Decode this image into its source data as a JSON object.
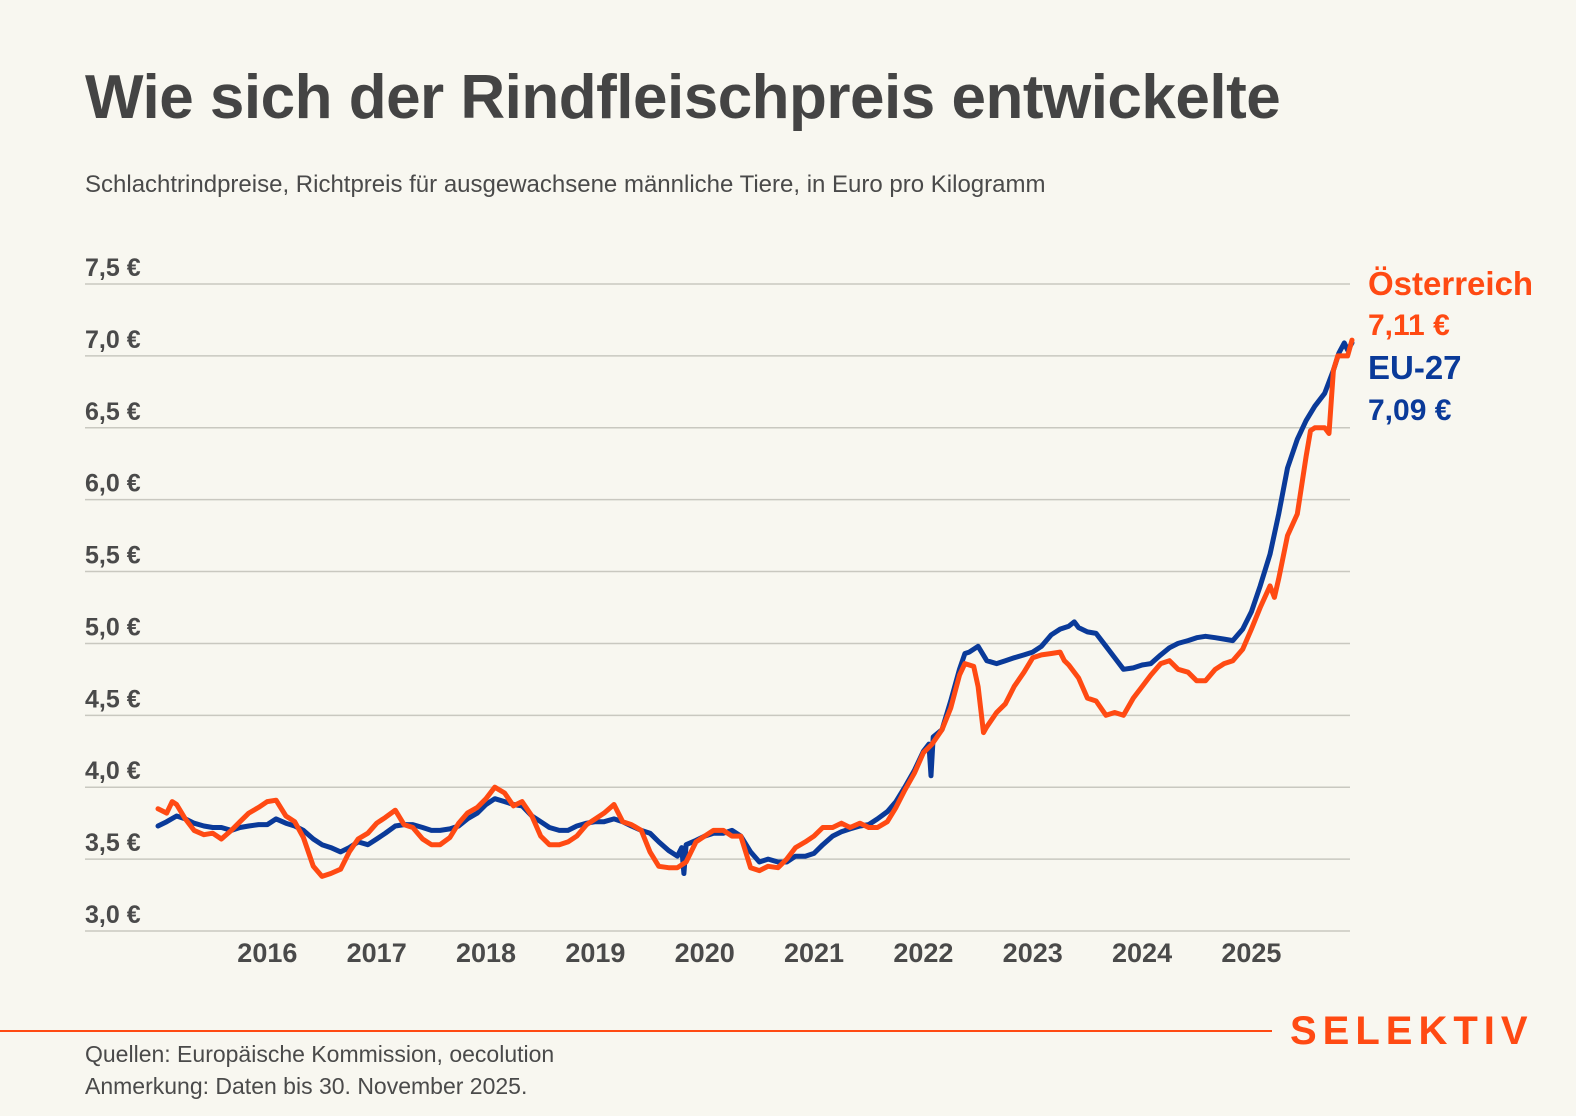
{
  "title": "Wie sich der Rindfleischpreis entwickelte",
  "subtitle": "Schlachtrindpreise, Richtpreis für ausgewachsene männliche Tiere, in Euro pro Kilogramm",
  "legend": {
    "austria": {
      "name": "Österreich",
      "value": "7,11 €"
    },
    "eu": {
      "name": "EU-27",
      "value": "7,09 €"
    }
  },
  "colors": {
    "austria": "#ff4a13",
    "eu": "#0a3a99",
    "grid": "#c9c8c0",
    "text": "#444444",
    "background": "#f8f7f0",
    "brand": "#ff4a13"
  },
  "footer": {
    "brand": "SELEKTIV",
    "sources": "Quellen: Europäische Kommission, oecolution",
    "note": "Anmerkung: Daten bis 30. November 2025."
  },
  "chart_data": {
    "type": "line",
    "title": "Wie sich der Rindfleischpreis entwickelte",
    "subtitle": "Schlachtrindpreise, Richtpreis für ausgewachsene männliche Tiere, in Euro pro Kilogramm",
    "xlabel": "",
    "ylabel": "Euro pro Kilogramm",
    "ylim": [
      3.0,
      7.5
    ],
    "xlim": [
      2015.0,
      2025.92
    ],
    "grid": true,
    "legend_position": "right",
    "yticks": [
      3.0,
      3.5,
      4.0,
      4.5,
      5.0,
      5.5,
      6.0,
      6.5,
      7.0,
      7.5
    ],
    "ytick_labels": [
      "3,0 €",
      "3,5 €",
      "4,0 €",
      "4,5 €",
      "5,0 €",
      "5,5 €",
      "6,0 €",
      "6,5 €",
      "7,0 €",
      "7,5 €"
    ],
    "xticks": [
      2016,
      2017,
      2018,
      2019,
      2020,
      2021,
      2022,
      2023,
      2024,
      2025
    ],
    "xtick_labels": [
      "2016",
      "2017",
      "2018",
      "2019",
      "2020",
      "2021",
      "2022",
      "2023",
      "2024",
      "2025"
    ],
    "series": [
      {
        "name": "EU-27",
        "color": "#0a3a99",
        "last_value": 7.09,
        "points": [
          [
            2015.0,
            3.73
          ],
          [
            2015.08,
            3.76
          ],
          [
            2015.17,
            3.8
          ],
          [
            2015.25,
            3.78
          ],
          [
            2015.33,
            3.75
          ],
          [
            2015.42,
            3.73
          ],
          [
            2015.5,
            3.72
          ],
          [
            2015.58,
            3.72
          ],
          [
            2015.67,
            3.7
          ],
          [
            2015.75,
            3.72
          ],
          [
            2015.83,
            3.73
          ],
          [
            2015.92,
            3.74
          ],
          [
            2016.0,
            3.74
          ],
          [
            2016.08,
            3.78
          ],
          [
            2016.17,
            3.75
          ],
          [
            2016.25,
            3.73
          ],
          [
            2016.33,
            3.7
          ],
          [
            2016.42,
            3.64
          ],
          [
            2016.5,
            3.6
          ],
          [
            2016.58,
            3.58
          ],
          [
            2016.67,
            3.55
          ],
          [
            2016.75,
            3.58
          ],
          [
            2016.83,
            3.62
          ],
          [
            2016.92,
            3.6
          ],
          [
            2017.0,
            3.64
          ],
          [
            2017.08,
            3.68
          ],
          [
            2017.17,
            3.73
          ],
          [
            2017.25,
            3.74
          ],
          [
            2017.33,
            3.74
          ],
          [
            2017.42,
            3.72
          ],
          [
            2017.5,
            3.7
          ],
          [
            2017.58,
            3.7
          ],
          [
            2017.67,
            3.71
          ],
          [
            2017.75,
            3.73
          ],
          [
            2017.83,
            3.78
          ],
          [
            2017.92,
            3.82
          ],
          [
            2018.0,
            3.88
          ],
          [
            2018.08,
            3.92
          ],
          [
            2018.17,
            3.9
          ],
          [
            2018.25,
            3.88
          ],
          [
            2018.33,
            3.87
          ],
          [
            2018.42,
            3.8
          ],
          [
            2018.5,
            3.76
          ],
          [
            2018.58,
            3.72
          ],
          [
            2018.67,
            3.7
          ],
          [
            2018.75,
            3.7
          ],
          [
            2018.83,
            3.73
          ],
          [
            2018.92,
            3.75
          ],
          [
            2019.0,
            3.76
          ],
          [
            2019.08,
            3.76
          ],
          [
            2019.17,
            3.78
          ],
          [
            2019.25,
            3.76
          ],
          [
            2019.33,
            3.73
          ],
          [
            2019.42,
            3.7
          ],
          [
            2019.5,
            3.68
          ],
          [
            2019.58,
            3.62
          ],
          [
            2019.67,
            3.56
          ],
          [
            2019.75,
            3.52
          ],
          [
            2019.79,
            3.58
          ],
          [
            2019.81,
            3.4
          ],
          [
            2019.83,
            3.6
          ],
          [
            2019.92,
            3.63
          ],
          [
            2020.0,
            3.66
          ],
          [
            2020.08,
            3.68
          ],
          [
            2020.17,
            3.68
          ],
          [
            2020.25,
            3.7
          ],
          [
            2020.33,
            3.66
          ],
          [
            2020.42,
            3.55
          ],
          [
            2020.5,
            3.48
          ],
          [
            2020.58,
            3.5
          ],
          [
            2020.67,
            3.48
          ],
          [
            2020.75,
            3.48
          ],
          [
            2020.83,
            3.52
          ],
          [
            2020.92,
            3.52
          ],
          [
            2021.0,
            3.54
          ],
          [
            2021.08,
            3.6
          ],
          [
            2021.17,
            3.66
          ],
          [
            2021.25,
            3.69
          ],
          [
            2021.33,
            3.71
          ],
          [
            2021.42,
            3.73
          ],
          [
            2021.5,
            3.74
          ],
          [
            2021.58,
            3.78
          ],
          [
            2021.67,
            3.83
          ],
          [
            2021.75,
            3.9
          ],
          [
            2021.83,
            4.0
          ],
          [
            2021.92,
            4.12
          ],
          [
            2022.0,
            4.25
          ],
          [
            2022.05,
            4.3
          ],
          [
            2022.07,
            4.08
          ],
          [
            2022.09,
            4.35
          ],
          [
            2022.17,
            4.4
          ],
          [
            2022.25,
            4.6
          ],
          [
            2022.33,
            4.82
          ],
          [
            2022.38,
            4.93
          ],
          [
            2022.42,
            4.94
          ],
          [
            2022.5,
            4.98
          ],
          [
            2022.58,
            4.88
          ],
          [
            2022.67,
            4.86
          ],
          [
            2022.75,
            4.88
          ],
          [
            2022.83,
            4.9
          ],
          [
            2022.92,
            4.92
          ],
          [
            2023.0,
            4.94
          ],
          [
            2023.08,
            4.98
          ],
          [
            2023.17,
            5.06
          ],
          [
            2023.25,
            5.1
          ],
          [
            2023.33,
            5.12
          ],
          [
            2023.38,
            5.15
          ],
          [
            2023.42,
            5.11
          ],
          [
            2023.5,
            5.08
          ],
          [
            2023.58,
            5.07
          ],
          [
            2023.67,
            4.98
          ],
          [
            2023.75,
            4.9
          ],
          [
            2023.83,
            4.82
          ],
          [
            2023.92,
            4.83
          ],
          [
            2024.0,
            4.85
          ],
          [
            2024.08,
            4.86
          ],
          [
            2024.17,
            4.92
          ],
          [
            2024.25,
            4.97
          ],
          [
            2024.33,
            5.0
          ],
          [
            2024.42,
            5.02
          ],
          [
            2024.5,
            5.04
          ],
          [
            2024.58,
            5.05
          ],
          [
            2024.67,
            5.04
          ],
          [
            2024.75,
            5.03
          ],
          [
            2024.83,
            5.02
          ],
          [
            2024.92,
            5.1
          ],
          [
            2025.0,
            5.22
          ],
          [
            2025.08,
            5.4
          ],
          [
            2025.17,
            5.62
          ],
          [
            2025.25,
            5.9
          ],
          [
            2025.33,
            6.22
          ],
          [
            2025.42,
            6.42
          ],
          [
            2025.5,
            6.55
          ],
          [
            2025.58,
            6.65
          ],
          [
            2025.67,
            6.74
          ],
          [
            2025.75,
            6.9
          ],
          [
            2025.8,
            7.02
          ],
          [
            2025.85,
            7.09
          ],
          [
            2025.88,
            7.04
          ],
          [
            2025.92,
            7.09
          ]
        ]
      },
      {
        "name": "Österreich",
        "color": "#ff4a13",
        "last_value": 7.11,
        "points": [
          [
            2015.0,
            3.85
          ],
          [
            2015.08,
            3.82
          ],
          [
            2015.13,
            3.9
          ],
          [
            2015.17,
            3.88
          ],
          [
            2015.25,
            3.78
          ],
          [
            2015.33,
            3.7
          ],
          [
            2015.42,
            3.67
          ],
          [
            2015.5,
            3.68
          ],
          [
            2015.58,
            3.64
          ],
          [
            2015.67,
            3.7
          ],
          [
            2015.75,
            3.76
          ],
          [
            2015.83,
            3.82
          ],
          [
            2015.92,
            3.86
          ],
          [
            2016.0,
            3.9
          ],
          [
            2016.08,
            3.91
          ],
          [
            2016.17,
            3.8
          ],
          [
            2016.25,
            3.76
          ],
          [
            2016.33,
            3.65
          ],
          [
            2016.42,
            3.45
          ],
          [
            2016.5,
            3.38
          ],
          [
            2016.58,
            3.4
          ],
          [
            2016.67,
            3.43
          ],
          [
            2016.75,
            3.55
          ],
          [
            2016.83,
            3.64
          ],
          [
            2016.92,
            3.68
          ],
          [
            2017.0,
            3.75
          ],
          [
            2017.08,
            3.79
          ],
          [
            2017.17,
            3.84
          ],
          [
            2017.25,
            3.74
          ],
          [
            2017.33,
            3.72
          ],
          [
            2017.42,
            3.64
          ],
          [
            2017.5,
            3.6
          ],
          [
            2017.58,
            3.6
          ],
          [
            2017.67,
            3.65
          ],
          [
            2017.75,
            3.75
          ],
          [
            2017.83,
            3.82
          ],
          [
            2017.92,
            3.86
          ],
          [
            2018.0,
            3.92
          ],
          [
            2018.08,
            4.0
          ],
          [
            2018.17,
            3.96
          ],
          [
            2018.25,
            3.87
          ],
          [
            2018.33,
            3.9
          ],
          [
            2018.42,
            3.8
          ],
          [
            2018.5,
            3.66
          ],
          [
            2018.58,
            3.6
          ],
          [
            2018.67,
            3.6
          ],
          [
            2018.75,
            3.62
          ],
          [
            2018.83,
            3.66
          ],
          [
            2018.92,
            3.74
          ],
          [
            2019.0,
            3.78
          ],
          [
            2019.08,
            3.82
          ],
          [
            2019.17,
            3.88
          ],
          [
            2019.25,
            3.76
          ],
          [
            2019.33,
            3.74
          ],
          [
            2019.42,
            3.7
          ],
          [
            2019.5,
            3.55
          ],
          [
            2019.58,
            3.45
          ],
          [
            2019.67,
            3.44
          ],
          [
            2019.75,
            3.44
          ],
          [
            2019.83,
            3.48
          ],
          [
            2019.92,
            3.62
          ],
          [
            2020.0,
            3.66
          ],
          [
            2020.08,
            3.7
          ],
          [
            2020.17,
            3.7
          ],
          [
            2020.25,
            3.66
          ],
          [
            2020.33,
            3.66
          ],
          [
            2020.42,
            3.44
          ],
          [
            2020.5,
            3.42
          ],
          [
            2020.58,
            3.45
          ],
          [
            2020.67,
            3.44
          ],
          [
            2020.75,
            3.5
          ],
          [
            2020.83,
            3.58
          ],
          [
            2020.92,
            3.62
          ],
          [
            2021.0,
            3.66
          ],
          [
            2021.08,
            3.72
          ],
          [
            2021.17,
            3.72
          ],
          [
            2021.25,
            3.75
          ],
          [
            2021.33,
            3.72
          ],
          [
            2021.42,
            3.75
          ],
          [
            2021.5,
            3.72
          ],
          [
            2021.58,
            3.72
          ],
          [
            2021.67,
            3.76
          ],
          [
            2021.75,
            3.86
          ],
          [
            2021.83,
            3.98
          ],
          [
            2021.92,
            4.1
          ],
          [
            2022.0,
            4.24
          ],
          [
            2022.08,
            4.3
          ],
          [
            2022.17,
            4.4
          ],
          [
            2022.25,
            4.55
          ],
          [
            2022.33,
            4.78
          ],
          [
            2022.38,
            4.86
          ],
          [
            2022.46,
            4.84
          ],
          [
            2022.5,
            4.7
          ],
          [
            2022.55,
            4.38
          ],
          [
            2022.58,
            4.42
          ],
          [
            2022.67,
            4.52
          ],
          [
            2022.75,
            4.58
          ],
          [
            2022.83,
            4.7
          ],
          [
            2022.92,
            4.8
          ],
          [
            2023.0,
            4.9
          ],
          [
            2023.08,
            4.92
          ],
          [
            2023.17,
            4.93
          ],
          [
            2023.25,
            4.94
          ],
          [
            2023.29,
            4.88
          ],
          [
            2023.33,
            4.85
          ],
          [
            2023.42,
            4.76
          ],
          [
            2023.5,
            4.62
          ],
          [
            2023.58,
            4.6
          ],
          [
            2023.67,
            4.5
          ],
          [
            2023.75,
            4.52
          ],
          [
            2023.83,
            4.5
          ],
          [
            2023.92,
            4.62
          ],
          [
            2024.0,
            4.7
          ],
          [
            2024.08,
            4.78
          ],
          [
            2024.17,
            4.86
          ],
          [
            2024.25,
            4.88
          ],
          [
            2024.33,
            4.82
          ],
          [
            2024.42,
            4.8
          ],
          [
            2024.5,
            4.74
          ],
          [
            2024.58,
            4.74
          ],
          [
            2024.67,
            4.82
          ],
          [
            2024.75,
            4.86
          ],
          [
            2024.83,
            4.88
          ],
          [
            2024.92,
            4.96
          ],
          [
            2025.0,
            5.1
          ],
          [
            2025.08,
            5.25
          ],
          [
            2025.17,
            5.4
          ],
          [
            2025.21,
            5.32
          ],
          [
            2025.25,
            5.45
          ],
          [
            2025.33,
            5.75
          ],
          [
            2025.42,
            5.9
          ],
          [
            2025.5,
            6.3
          ],
          [
            2025.54,
            6.48
          ],
          [
            2025.58,
            6.5
          ],
          [
            2025.67,
            6.5
          ],
          [
            2025.71,
            6.46
          ],
          [
            2025.75,
            6.9
          ],
          [
            2025.79,
            7.0
          ],
          [
            2025.83,
            7.0
          ],
          [
            2025.88,
            7.0
          ],
          [
            2025.92,
            7.11
          ]
        ]
      }
    ]
  }
}
